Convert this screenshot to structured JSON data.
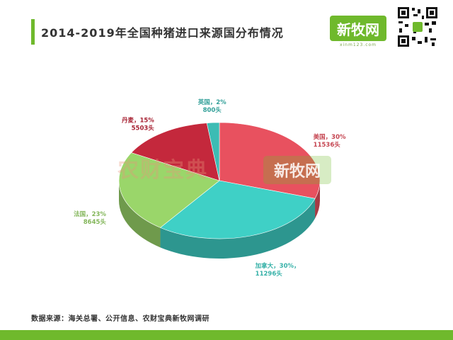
{
  "header": {
    "title": "2014-2019年全国种猪进口来源国分布情况",
    "logo_text": "新牧网",
    "logo_subtext": "xinm123.com",
    "accent_color": "#6fb92c"
  },
  "watermarks": {
    "left": "农财宝典",
    "right": "新牧网"
  },
  "footer": {
    "source": "数据来源：海关总署、公开信息、农财宝典新牧网调研"
  },
  "chart_data": {
    "type": "pie",
    "style": "3d",
    "slices": [
      {
        "label": "美国，30%",
        "value_label": "11536头",
        "percent": 30,
        "value": 11536,
        "color": "#e8515f"
      },
      {
        "label": "加拿大，30%，",
        "value_label": "11296头",
        "percent": 30,
        "value": 11296,
        "color": "#3fd0c6"
      },
      {
        "label": "法国，23%",
        "value_label": "8645头",
        "percent": 23,
        "value": 8645,
        "color": "#9ad66a"
      },
      {
        "label": "丹麦，15%",
        "value_label": "5503头",
        "percent": 15,
        "value": 5503,
        "color": "#c4283c"
      },
      {
        "label": "英国，2%",
        "value_label": "800头",
        "percent": 2,
        "value": 800,
        "color": "#3cbcb4"
      }
    ]
  }
}
